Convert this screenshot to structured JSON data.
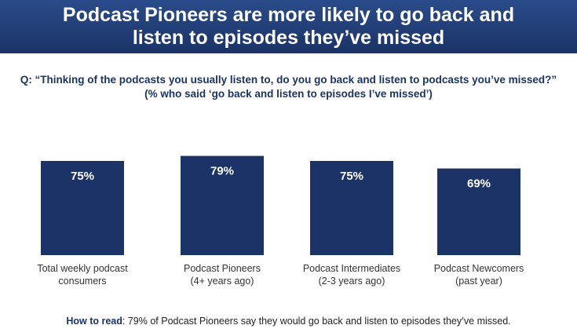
{
  "title_line1": "Podcast Pioneers are more likely to go back and",
  "title_line2": "listen to episodes they’ve missed",
  "question_line1": "Q: “Thinking of the podcasts you usually listen to, do you go back and listen to podcasts you’ve missed?”",
  "question_line2": "(% who said ‘go back and listen to episodes I’ve missed’)",
  "how_to_read_label": "How to read",
  "how_to_read_text": ": 79% of Podcast Pioneers say they would go back and listen to episodes they’ve missed.",
  "colors": {
    "bar": "#1b3366",
    "banner": "#1f3b73",
    "question": "#1b3366"
  },
  "chart_data": {
    "type": "bar",
    "categories": [
      [
        "Total weekly podcast",
        "consumers"
      ],
      [
        "Podcast Pioneers",
        "(4+ years ago)"
      ],
      [
        "Podcast Intermediates",
        "(2-3 years ago)"
      ],
      [
        "Podcast Newcomers",
        "(past year)"
      ]
    ],
    "values": [
      75,
      79,
      75,
      69
    ],
    "value_labels": [
      "75%",
      "79%",
      "75%",
      "69%"
    ],
    "ylim": [
      0,
      100
    ],
    "grid": false,
    "legend": false
  }
}
